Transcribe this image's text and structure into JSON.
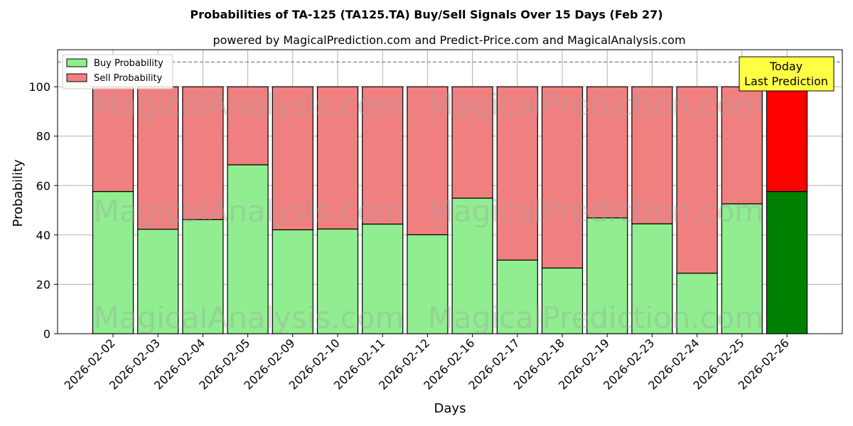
{
  "chart_data": {
    "type": "bar",
    "stacked": true,
    "title": "Probabilities of TA-125 (TA125.TA) Buy/Sell Signals Over 15 Days (Feb 27)",
    "subtitle": "powered by MagicalPrediction.com and Predict-Price.com and MagicalAnalysis.com",
    "xlabel": "Days",
    "ylabel": "Probability",
    "ylim": [
      0,
      115
    ],
    "yticks": [
      0,
      20,
      40,
      60,
      80,
      100
    ],
    "grid": true,
    "legend_position": "top-left",
    "reference_line": 110,
    "categories": [
      "2026-02-02",
      "2026-02-03",
      "2026-02-04",
      "2026-02-05",
      "2026-02-09",
      "2026-02-10",
      "2026-02-11",
      "2026-02-12",
      "2026-02-16",
      "2026-02-17",
      "2026-02-18",
      "2026-02-19",
      "2026-02-23",
      "2026-02-24",
      "2026-02-25",
      "2026-02-26"
    ],
    "series": [
      {
        "name": "Buy Probability",
        "color": "#90ee90",
        "highlight_color": "#008000",
        "values": [
          57.6,
          42.3,
          46.2,
          68.4,
          42.1,
          42.4,
          44.4,
          40.1,
          54.9,
          29.8,
          26.6,
          46.9,
          44.5,
          24.5,
          52.6,
          57.6
        ]
      },
      {
        "name": "Sell Probability",
        "color": "#f08080",
        "highlight_color": "#ff0000",
        "values": [
          42.4,
          57.7,
          53.8,
          31.6,
          57.9,
          57.6,
          55.6,
          59.9,
          45.1,
          70.2,
          73.4,
          53.1,
          55.5,
          75.5,
          47.4,
          42.4
        ]
      }
    ],
    "annotation": {
      "lines": [
        "Today",
        "Last Prediction"
      ],
      "background": "#ffff44"
    },
    "watermarks": [
      "MagicalAnalysis.com",
      "MagicalPrediction.com"
    ]
  }
}
